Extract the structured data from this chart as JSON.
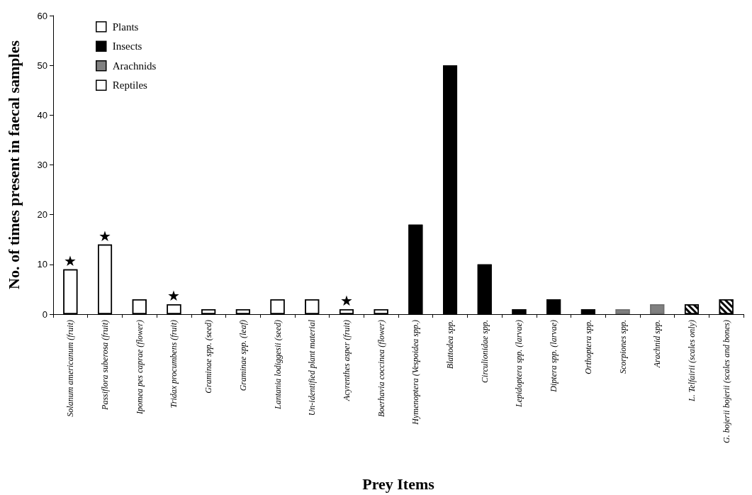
{
  "chart_data": {
    "type": "bar",
    "xlabel": "Prey Items",
    "ylabel": "No. of times present in faecal samples",
    "categories": [
      "Solanum americanum (fruit)",
      "Passiflora suberosa (fruit)",
      "Ipomea pes caprae (flower)",
      "Tridax procumbens (fruit)",
      "Graminae spp. (seed)",
      "Graminae spp. (leaf)",
      "Lantania lodiggesii (seed)",
      "Un-identified plant material",
      "Acyrenthes asper (fruit)",
      "Boerhavia coccinea (flower)",
      "Hymenoptera (Vespoidea spp.)",
      "Blattodea spp.",
      "Circulionidae spp.",
      "Lepidoptera spp. (larvae)",
      "Diptera spp. (larvae)",
      "Orthoptera spp.",
      "Scorpiones spp.",
      "Arachnid spp.",
      "L. Telfairii (scales only)",
      "G. bojerii bojerii (scales and bones)"
    ],
    "series": [
      {
        "name": "Plants",
        "color": "#ffffff",
        "values": [
          9,
          14,
          3,
          2,
          1,
          1,
          3,
          3,
          1,
          1,
          null,
          null,
          null,
          null,
          null,
          null,
          null,
          null,
          null,
          null
        ]
      },
      {
        "name": "Insects",
        "color": "#000000",
        "values": [
          null,
          null,
          null,
          null,
          null,
          null,
          null,
          null,
          null,
          null,
          18,
          50,
          10,
          1,
          3,
          1,
          null,
          null,
          null,
          null
        ]
      },
      {
        "name": "Arachnids",
        "color": "#808080",
        "values": [
          null,
          null,
          null,
          null,
          null,
          null,
          null,
          null,
          null,
          null,
          null,
          null,
          null,
          null,
          null,
          null,
          1,
          2,
          null,
          null
        ]
      },
      {
        "name": "Reptiles",
        "color": "#ffffff",
        "values": [
          null,
          null,
          null,
          null,
          null,
          null,
          null,
          null,
          null,
          null,
          null,
          null,
          null,
          null,
          null,
          null,
          null,
          null,
          2,
          3
        ]
      }
    ],
    "annotations": [
      {
        "text": "★",
        "x": "Solanum americanum (fruit)",
        "y": 9
      },
      {
        "text": "★",
        "x": "Passiflora suberosa (fruit)",
        "y": 14
      },
      {
        "text": "★",
        "x": "Tridax procumbens (fruit)",
        "y": 2
      },
      {
        "text": "★",
        "x": "Acyrenthes asper (fruit)",
        "y": 1
      }
    ],
    "ylim": [
      0,
      60
    ],
    "yticks": [
      0,
      10,
      20,
      30,
      40,
      50,
      60
    ],
    "grid": false,
    "legend": "top left"
  }
}
